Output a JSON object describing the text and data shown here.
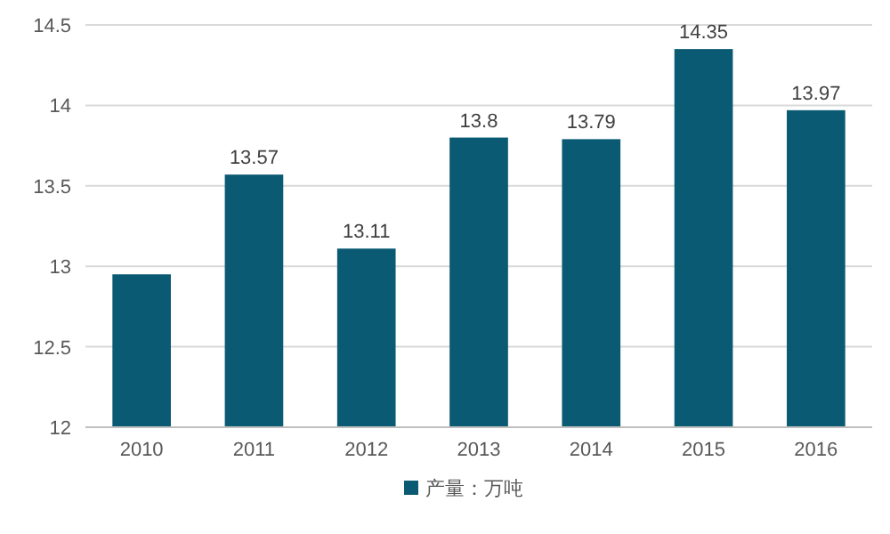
{
  "chart_data": {
    "type": "bar",
    "categories": [
      "2010",
      "2011",
      "2012",
      "2013",
      "2014",
      "2015",
      "2016"
    ],
    "series": [
      {
        "name": "产量：万吨",
        "color": "#0b5a73",
        "values": [
          12.95,
          13.57,
          13.11,
          13.8,
          13.79,
          14.35,
          13.97
        ],
        "value_labels": [
          null,
          "13.57",
          "13.11",
          "13.8",
          "13.79",
          "14.35",
          "13.97"
        ]
      }
    ],
    "ylim": [
      12,
      14.5
    ],
    "yticks": [
      12,
      12.5,
      13,
      13.5,
      14,
      14.5
    ],
    "grid": "y",
    "legend": "bottom"
  }
}
